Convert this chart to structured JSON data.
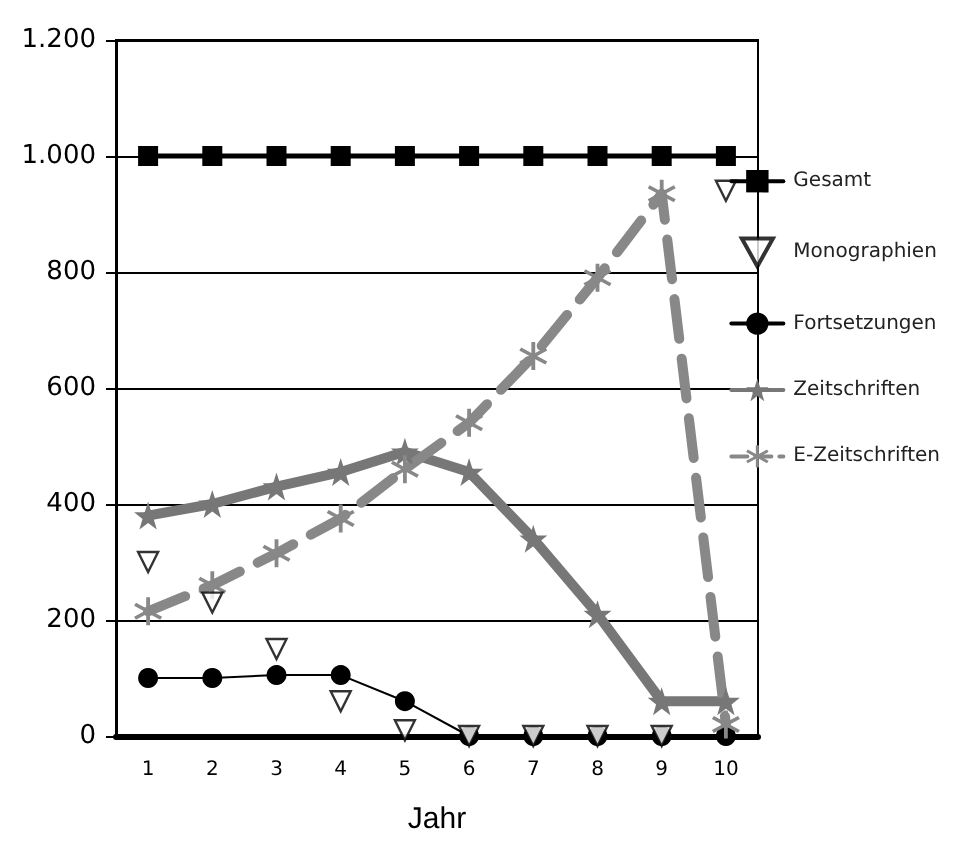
{
  "chart_data": {
    "type": "line",
    "xlabel": "Jahr",
    "categories": [
      "1",
      "2",
      "3",
      "4",
      "5",
      "6",
      "7",
      "8",
      "9",
      "10"
    ],
    "series": [
      {
        "name": "Gesamt",
        "color": "#000000",
        "marker": "square",
        "line_style": "solid",
        "values": [
          1000,
          1000,
          1000,
          1000,
          1000,
          1000,
          1000,
          1000,
          1000,
          1000
        ]
      },
      {
        "name": "Monographien",
        "type": "scatter",
        "color": "#000000",
        "marker": "triangle",
        "values": [
          300,
          230,
          150,
          60,
          10,
          0,
          0,
          0,
          0,
          940
        ]
      },
      {
        "name": "Fortsetzungen",
        "color": "#000000",
        "marker": "circle",
        "line_style": "solid",
        "values": [
          100,
          100,
          105,
          105,
          60,
          0,
          0,
          0,
          0,
          0
        ]
      },
      {
        "name": "Zeitschriften",
        "color": "#777777",
        "marker": "star",
        "line_style": "solid",
        "values": [
          380,
          400,
          430,
          455,
          490,
          455,
          340,
          210,
          60,
          60
        ]
      },
      {
        "name": "E-Zeitschriften",
        "color": "#888888",
        "marker": "cross",
        "line_style": "dashed",
        "values": [
          215,
          260,
          315,
          375,
          460,
          540,
          655,
          790,
          935,
          20
        ]
      }
    ],
    "ylim": [
      0,
      1200
    ],
    "yticks": [
      0,
      200,
      400,
      600,
      800,
      {
        "value": 1000,
        "label": "1.000"
      },
      {
        "value": 1200,
        "label": "1.200"
      }
    ],
    "grid": "y",
    "legend": "right"
  }
}
